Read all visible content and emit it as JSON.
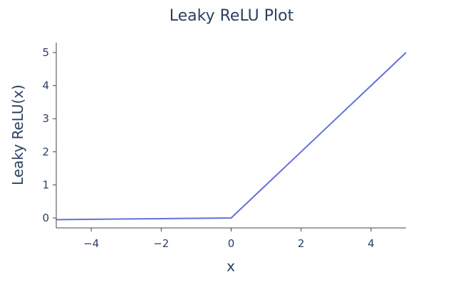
{
  "chart_data": {
    "type": "line",
    "title": "Leaky ReLU Plot",
    "xlabel": "x",
    "ylabel": "Leaky ReLU(x)",
    "xlim": [
      -5,
      5
    ],
    "ylim": [
      -0.3,
      5.3
    ],
    "xticks": [
      -4,
      -2,
      0,
      2,
      4
    ],
    "xtick_labels": [
      "−4",
      "−2",
      "0",
      "2",
      "4"
    ],
    "yticks": [
      0,
      1,
      2,
      3,
      4,
      5
    ],
    "ytick_labels": [
      "0",
      "1",
      "2",
      "3",
      "4",
      "5"
    ],
    "grid": false,
    "legend": "none",
    "series": [
      {
        "color": "#6370d9",
        "x": [
          -5,
          -4,
          -3,
          -2,
          -1,
          0,
          1,
          2,
          3,
          4,
          5
        ],
        "y": [
          -0.05,
          -0.04,
          -0.03,
          -0.02,
          -0.01,
          0,
          1,
          2,
          3,
          4,
          5
        ]
      }
    ]
  }
}
